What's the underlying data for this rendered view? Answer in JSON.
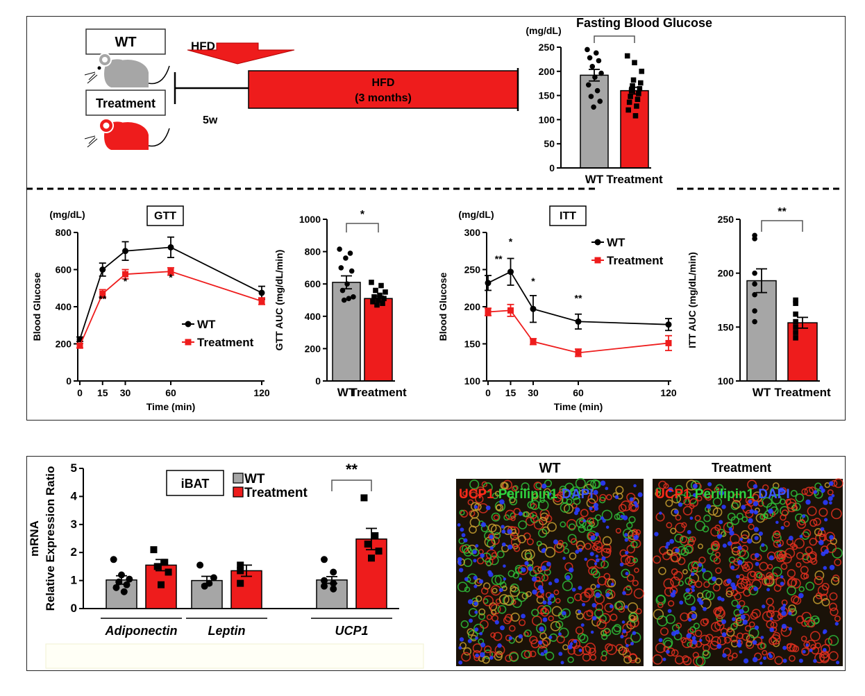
{
  "colors": {
    "wt": "#a6a6a6",
    "treatment": "#ee1c1c",
    "black": "#000000",
    "micro_bg": "#1a1208",
    "red_stain": "#e33020",
    "green_stain": "#2fbf3a",
    "blue_stain": "#2a3cff"
  },
  "schematic": {
    "wt_label": "WT",
    "treatment_label": "Treatment",
    "hfd_arrow_label": "HFD",
    "age_label": "5w",
    "hfd_bar_line1": "HFD",
    "hfd_bar_line2": "(3 months)"
  },
  "chart_data": [
    {
      "id": "fbg",
      "type": "bar",
      "title": "Fasting Blood Glucose",
      "unit": "(mg/dL)",
      "categories": [
        "WT",
        "Treatment"
      ],
      "values": [
        192,
        160
      ],
      "sem": [
        12,
        7
      ],
      "ylim": [
        0,
        250
      ],
      "yticks": [
        0,
        50,
        100,
        150,
        200,
        250
      ],
      "significance": {
        "pair": [
          0,
          1
        ],
        "label": ""
      },
      "points": [
        [
          245,
          238,
          228,
          222,
          210,
          196,
          188,
          172,
          160,
          148,
          138,
          126
        ],
        [
          232,
          218,
          200,
          182,
          176,
          170,
          164,
          160,
          154,
          148,
          142,
          136,
          128,
          120,
          108
        ]
      ]
    },
    {
      "id": "gtt",
      "type": "line",
      "title": "GTT",
      "unit": "(mg/dL)",
      "ylabel": "Blood Glucose",
      "xlabel": "Time (min)",
      "x": [
        0,
        15,
        30,
        60,
        120
      ],
      "xlim": [
        0,
        120
      ],
      "ylim": [
        0,
        800
      ],
      "yticks": [
        0,
        200,
        400,
        600,
        800
      ],
      "series": [
        {
          "name": "WT",
          "values": [
            225,
            600,
            700,
            720,
            475
          ],
          "err": [
            12,
            35,
            50,
            55,
            35
          ]
        },
        {
          "name": "Treatment",
          "values": [
            190,
            470,
            575,
            590,
            430
          ],
          "err": [
            12,
            22,
            25,
            20,
            18
          ]
        }
      ],
      "annotations": [
        {
          "x": 0,
          "y": 195,
          "label": "*"
        },
        {
          "x": 15,
          "y": 425,
          "label": "**"
        },
        {
          "x": 30,
          "y": 520,
          "label": "*"
        },
        {
          "x": 60,
          "y": 540,
          "label": "*"
        }
      ]
    },
    {
      "id": "gtt_auc",
      "type": "bar",
      "ylabel": "GTT AUC (mg/dL/min)",
      "categories": [
        "WT",
        "Treatment"
      ],
      "values": [
        610,
        510
      ],
      "sem": [
        40,
        15
      ],
      "ylim": [
        0,
        1000
      ],
      "yticks": [
        0,
        200,
        400,
        600,
        800,
        1000
      ],
      "significance": {
        "pair": [
          0,
          1
        ],
        "label": "*"
      },
      "points": [
        [
          815,
          790,
          760,
          700,
          680,
          600,
          560,
          520,
          510,
          500
        ],
        [
          610,
          590,
          560,
          550,
          530,
          520,
          510,
          500,
          490,
          480,
          470
        ]
      ]
    },
    {
      "id": "itt",
      "type": "line",
      "title": "ITT",
      "unit": "(mg/dL)",
      "ylabel": "Blood Glucose",
      "xlabel": "Time (min)",
      "x": [
        0,
        15,
        30,
        60,
        120
      ],
      "xlim": [
        0,
        120
      ],
      "ylim": [
        100,
        300
      ],
      "yticks": [
        100,
        150,
        200,
        250,
        300
      ],
      "series": [
        {
          "name": "WT",
          "values": [
            232,
            247,
            197,
            180,
            176
          ],
          "err": [
            10,
            18,
            18,
            10,
            8
          ]
        },
        {
          "name": "Treatment",
          "values": [
            193,
            195,
            153,
            138,
            151
          ],
          "err": [
            5,
            8,
            4,
            5,
            10
          ]
        }
      ],
      "annotations": [
        {
          "x": 7,
          "y": 260,
          "label": "**"
        },
        {
          "x": 15,
          "y": 283,
          "label": "*"
        },
        {
          "x": 30,
          "y": 230,
          "label": "*"
        },
        {
          "x": 60,
          "y": 207,
          "label": "**"
        }
      ]
    },
    {
      "id": "itt_auc",
      "type": "bar",
      "ylabel": "ITT AUC (mg/dL/min)",
      "categories": [
        "WT",
        "Treatment"
      ],
      "values": [
        193,
        154
      ],
      "sem": [
        11,
        5
      ],
      "ylim": [
        100,
        250
      ],
      "yticks": [
        100,
        150,
        200,
        250
      ],
      "significance": {
        "pair": [
          0,
          1
        ],
        "label": "**"
      },
      "points": [
        [
          235,
          232,
          200,
          190,
          180,
          165,
          155
        ],
        [
          175,
          172,
          162,
          155,
          150,
          145,
          140
        ]
      ]
    },
    {
      "id": "ibat",
      "type": "bar",
      "title": "iBAT",
      "ylabel": "mRNA\nRelative Expression Ratio",
      "categories": [
        "Adiponectin",
        "Leptin",
        "UCP1"
      ],
      "ylim": [
        0,
        5
      ],
      "yticks": [
        0,
        1,
        2,
        3,
        4,
        5
      ],
      "series": [
        {
          "name": "WT",
          "values": [
            1.02,
            1.0,
            1.02
          ],
          "sem": [
            0.15,
            0.15,
            0.12
          ]
        },
        {
          "name": "Treatment",
          "values": [
            1.55,
            1.35,
            2.48
          ],
          "sem": [
            0.2,
            0.2,
            0.38
          ]
        }
      ],
      "significance": [
        {
          "category": "UCP1",
          "label": "**"
        }
      ],
      "points": [
        [
          [
            1.75,
            1.2,
            1.05,
            0.95,
            0.85,
            0.75,
            0.6
          ],
          [
            2.1,
            1.65,
            1.5,
            1.3,
            0.85
          ]
        ],
        [
          [
            1.55,
            1.1,
            0.9,
            0.8
          ],
          [
            1.55,
            1.35,
            0.9
          ]
        ],
        [
          [
            1.75,
            1.3,
            1.0,
            0.9,
            0.8,
            0.7
          ],
          [
            3.95,
            2.6,
            2.3,
            2.05,
            1.8
          ]
        ]
      ]
    }
  ],
  "microscopy": {
    "wt_title": "WT",
    "treatment_title": "Treatment",
    "stain_ucp1": "UCP1",
    "stain_perilipin": "Perilipin1",
    "stain_dapi": "DAPI"
  }
}
